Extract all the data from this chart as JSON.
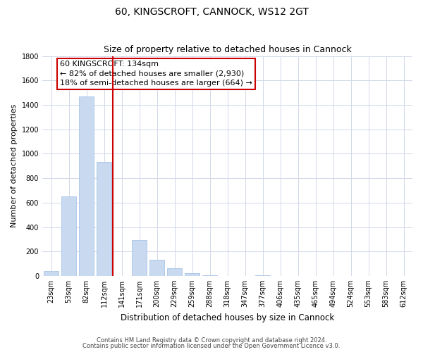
{
  "title": "60, KINGSCROFT, CANNOCK, WS12 2GT",
  "subtitle": "Size of property relative to detached houses in Cannock",
  "xlabel": "Distribution of detached houses by size in Cannock",
  "ylabel": "Number of detached properties",
  "bar_labels": [
    "23sqm",
    "53sqm",
    "82sqm",
    "112sqm",
    "141sqm",
    "171sqm",
    "200sqm",
    "229sqm",
    "259sqm",
    "288sqm",
    "318sqm",
    "347sqm",
    "377sqm",
    "406sqm",
    "435sqm",
    "465sqm",
    "494sqm",
    "524sqm",
    "553sqm",
    "583sqm",
    "612sqm"
  ],
  "bar_values": [
    40,
    650,
    1470,
    935,
    0,
    295,
    130,
    65,
    25,
    5,
    0,
    0,
    5,
    0,
    0,
    0,
    0,
    0,
    0,
    0,
    0
  ],
  "bar_color": "#c8d9f0",
  "bar_edge_color": "#a8c4e8",
  "redline_index": 4,
  "ylim": [
    0,
    1800
  ],
  "yticks": [
    0,
    200,
    400,
    600,
    800,
    1000,
    1200,
    1400,
    1600,
    1800
  ],
  "annotation_title": "60 KINGSCROFT: 134sqm",
  "annotation_line1": "← 82% of detached houses are smaller (2,930)",
  "annotation_line2": "18% of semi-detached houses are larger (664) →",
  "annotation_box_facecolor": "#ffffff",
  "annotation_box_edgecolor": "#cc0000",
  "footnote1": "Contains HM Land Registry data © Crown copyright and database right 2024.",
  "footnote2": "Contains public sector information licensed under the Open Government Licence v3.0.",
  "title_fontsize": 10,
  "subtitle_fontsize": 9,
  "tick_fontsize": 7,
  "ylabel_fontsize": 8,
  "xlabel_fontsize": 8.5,
  "ann_fontsize": 8,
  "footnote_fontsize": 6,
  "background_color": "#ffffff",
  "grid_color": "#d0d8e8"
}
